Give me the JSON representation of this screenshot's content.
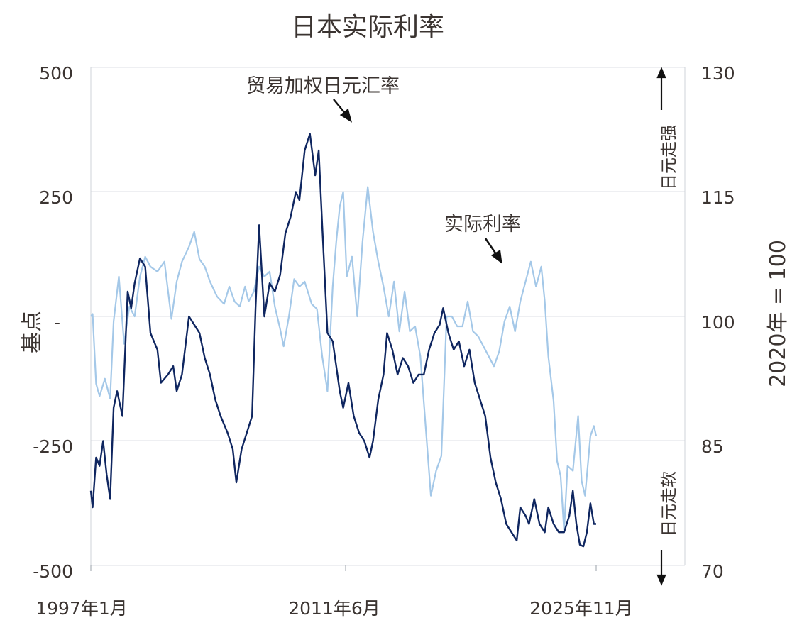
{
  "chart_data": {
    "type": "line",
    "title": "日本实际利率",
    "y_left": {
      "label": "基点",
      "ylim": [
        -500,
        500
      ],
      "ticks": [
        500,
        250,
        0,
        -250,
        -500
      ],
      "tick_labels": [
        "500",
        "250",
        "-",
        "-250",
        "-500"
      ]
    },
    "y_right": {
      "label": "2020年 = 100",
      "ylim": [
        70,
        130
      ],
      "ticks": [
        130,
        115,
        100,
        85,
        70
      ],
      "tick_labels": [
        "130",
        "115",
        "100",
        "85",
        "70"
      ]
    },
    "x_range": [
      1997.0,
      2025.83
    ],
    "x_tick_labels": [
      "1997年1月",
      "2011年6月",
      "2025年11月"
    ],
    "grid": "horizontal",
    "annotations": {
      "fx_label": "贸易加权日元汇率",
      "real_rate_label": "实际利率",
      "strong": "日元走强",
      "weak": "日元走软"
    },
    "series": [
      {
        "name": "实际利率",
        "axis": "left",
        "color": "#a4c8e8",
        "points": [
          [
            1997.0,
            0
          ],
          [
            1997.1,
            5
          ],
          [
            1997.3,
            -135
          ],
          [
            1997.5,
            -160
          ],
          [
            1997.8,
            -125
          ],
          [
            1998.1,
            -165
          ],
          [
            1998.3,
            -10
          ],
          [
            1998.6,
            80
          ],
          [
            1998.9,
            -55
          ],
          [
            1999.2,
            20
          ],
          [
            1999.5,
            0
          ],
          [
            1999.8,
            80
          ],
          [
            2000.1,
            120
          ],
          [
            2000.4,
            100
          ],
          [
            2000.8,
            90
          ],
          [
            2001.2,
            110
          ],
          [
            2001.6,
            -5
          ],
          [
            2001.9,
            70
          ],
          [
            2002.2,
            110
          ],
          [
            2002.6,
            140
          ],
          [
            2002.9,
            170
          ],
          [
            2003.2,
            115
          ],
          [
            2003.5,
            100
          ],
          [
            2003.8,
            70
          ],
          [
            2004.2,
            40
          ],
          [
            2004.6,
            25
          ],
          [
            2004.9,
            60
          ],
          [
            2005.2,
            30
          ],
          [
            2005.5,
            20
          ],
          [
            2005.8,
            60
          ],
          [
            2006.0,
            30
          ],
          [
            2006.3,
            50
          ],
          [
            2006.6,
            100
          ],
          [
            2006.9,
            80
          ],
          [
            2007.2,
            90
          ],
          [
            2007.5,
            20
          ],
          [
            2007.8,
            -25
          ],
          [
            2008.0,
            -60
          ],
          [
            2008.3,
            0
          ],
          [
            2008.6,
            75
          ],
          [
            2008.9,
            60
          ],
          [
            2009.2,
            70
          ],
          [
            2009.6,
            25
          ],
          [
            2009.9,
            15
          ],
          [
            2010.2,
            -80
          ],
          [
            2010.5,
            -150
          ],
          [
            2010.8,
            60
          ],
          [
            2011.0,
            150
          ],
          [
            2011.2,
            220
          ],
          [
            2011.4,
            250
          ],
          [
            2011.6,
            80
          ],
          [
            2011.9,
            120
          ],
          [
            2012.2,
            0
          ],
          [
            2012.5,
            150
          ],
          [
            2012.8,
            260
          ],
          [
            2013.1,
            170
          ],
          [
            2013.4,
            110
          ],
          [
            2013.7,
            60
          ],
          [
            2014.0,
            0
          ],
          [
            2014.3,
            70
          ],
          [
            2014.6,
            -30
          ],
          [
            2014.9,
            50
          ],
          [
            2015.2,
            -30
          ],
          [
            2015.5,
            -20
          ],
          [
            2015.8,
            -80
          ],
          [
            2016.1,
            -220
          ],
          [
            2016.4,
            -360
          ],
          [
            2016.7,
            -310
          ],
          [
            2017.0,
            -280
          ],
          [
            2017.3,
            0
          ],
          [
            2017.6,
            0
          ],
          [
            2017.9,
            -20
          ],
          [
            2018.2,
            -20
          ],
          [
            2018.5,
            30
          ],
          [
            2018.8,
            -30
          ],
          [
            2019.1,
            -40
          ],
          [
            2019.4,
            -60
          ],
          [
            2019.7,
            -80
          ],
          [
            2020.0,
            -100
          ],
          [
            2020.3,
            -70
          ],
          [
            2020.6,
            -10
          ],
          [
            2020.9,
            20
          ],
          [
            2021.2,
            -30
          ],
          [
            2021.5,
            30
          ],
          [
            2021.8,
            70
          ],
          [
            2022.1,
            110
          ],
          [
            2022.4,
            60
          ],
          [
            2022.7,
            100
          ],
          [
            2022.9,
            30
          ],
          [
            2023.1,
            -80
          ],
          [
            2023.4,
            -170
          ],
          [
            2023.6,
            -290
          ],
          [
            2023.8,
            -320
          ],
          [
            2024.0,
            -430
          ],
          [
            2024.2,
            -300
          ],
          [
            2024.5,
            -310
          ],
          [
            2024.8,
            -200
          ],
          [
            2025.0,
            -330
          ],
          [
            2025.2,
            -360
          ],
          [
            2025.5,
            -240
          ],
          [
            2025.7,
            -220
          ],
          [
            2025.83,
            -240
          ]
        ]
      },
      {
        "name": "贸易加权日元汇率",
        "axis": "right",
        "color": "#0f2660",
        "points": [
          [
            1997.0,
            79
          ],
          [
            1997.1,
            77
          ],
          [
            1997.3,
            83
          ],
          [
            1997.5,
            82
          ],
          [
            1997.7,
            85
          ],
          [
            1997.9,
            81
          ],
          [
            1998.1,
            78
          ],
          [
            1998.3,
            89
          ],
          [
            1998.5,
            91
          ],
          [
            1998.8,
            88
          ],
          [
            1999.1,
            103
          ],
          [
            1999.3,
            101
          ],
          [
            1999.5,
            104
          ],
          [
            1999.8,
            107
          ],
          [
            2000.1,
            106
          ],
          [
            2000.4,
            98
          ],
          [
            2000.8,
            96
          ],
          [
            2001.0,
            92
          ],
          [
            2001.4,
            93
          ],
          [
            2001.7,
            94
          ],
          [
            2001.9,
            91
          ],
          [
            2002.2,
            93
          ],
          [
            2002.6,
            100
          ],
          [
            2002.9,
            99
          ],
          [
            2003.2,
            98
          ],
          [
            2003.5,
            95
          ],
          [
            2003.8,
            93
          ],
          [
            2004.1,
            90
          ],
          [
            2004.4,
            88
          ],
          [
            2004.8,
            86
          ],
          [
            2005.1,
            84
          ],
          [
            2005.3,
            80
          ],
          [
            2005.6,
            84
          ],
          [
            2005.9,
            86
          ],
          [
            2006.2,
            88
          ],
          [
            2006.4,
            101
          ],
          [
            2006.6,
            111
          ],
          [
            2006.9,
            100
          ],
          [
            2007.2,
            104
          ],
          [
            2007.5,
            103
          ],
          [
            2007.8,
            105
          ],
          [
            2008.1,
            110
          ],
          [
            2008.4,
            112
          ],
          [
            2008.7,
            115
          ],
          [
            2008.9,
            114
          ],
          [
            2009.2,
            120
          ],
          [
            2009.5,
            122
          ],
          [
            2009.8,
            117
          ],
          [
            2010.0,
            120
          ],
          [
            2010.2,
            111
          ],
          [
            2010.5,
            98
          ],
          [
            2010.8,
            97
          ],
          [
            2011.0,
            94
          ],
          [
            2011.2,
            91
          ],
          [
            2011.4,
            89
          ],
          [
            2011.7,
            92
          ],
          [
            2012.0,
            88
          ],
          [
            2012.3,
            86
          ],
          [
            2012.6,
            85
          ],
          [
            2012.9,
            83
          ],
          [
            2013.1,
            85
          ],
          [
            2013.4,
            90
          ],
          [
            2013.7,
            93
          ],
          [
            2013.9,
            98
          ],
          [
            2014.2,
            96
          ],
          [
            2014.5,
            93
          ],
          [
            2014.8,
            95
          ],
          [
            2015.1,
            94
          ],
          [
            2015.4,
            92
          ],
          [
            2015.7,
            93
          ],
          [
            2016.0,
            93
          ],
          [
            2016.3,
            96
          ],
          [
            2016.6,
            98
          ],
          [
            2016.9,
            99
          ],
          [
            2017.1,
            101
          ],
          [
            2017.4,
            98
          ],
          [
            2017.7,
            96
          ],
          [
            2018.0,
            97
          ],
          [
            2018.3,
            94
          ],
          [
            2018.6,
            96
          ],
          [
            2018.9,
            92
          ],
          [
            2019.2,
            90
          ],
          [
            2019.5,
            88
          ],
          [
            2019.8,
            83
          ],
          [
            2020.1,
            80
          ],
          [
            2020.4,
            78
          ],
          [
            2020.7,
            75
          ],
          [
            2021.0,
            74
          ],
          [
            2021.3,
            73
          ],
          [
            2021.5,
            77
          ],
          [
            2021.8,
            76
          ],
          [
            2022.0,
            75
          ],
          [
            2022.3,
            78
          ],
          [
            2022.6,
            75
          ],
          [
            2022.9,
            74
          ],
          [
            2023.1,
            77
          ],
          [
            2023.4,
            75
          ],
          [
            2023.7,
            74
          ],
          [
            2024.0,
            74
          ],
          [
            2024.3,
            76
          ],
          [
            2024.5,
            79
          ],
          [
            2024.7,
            75
          ],
          [
            2024.9,
            72.5
          ],
          [
            2025.1,
            72.3
          ],
          [
            2025.3,
            74
          ],
          [
            2025.5,
            77.5
          ],
          [
            2025.7,
            75
          ],
          [
            2025.83,
            75
          ]
        ]
      }
    ]
  }
}
